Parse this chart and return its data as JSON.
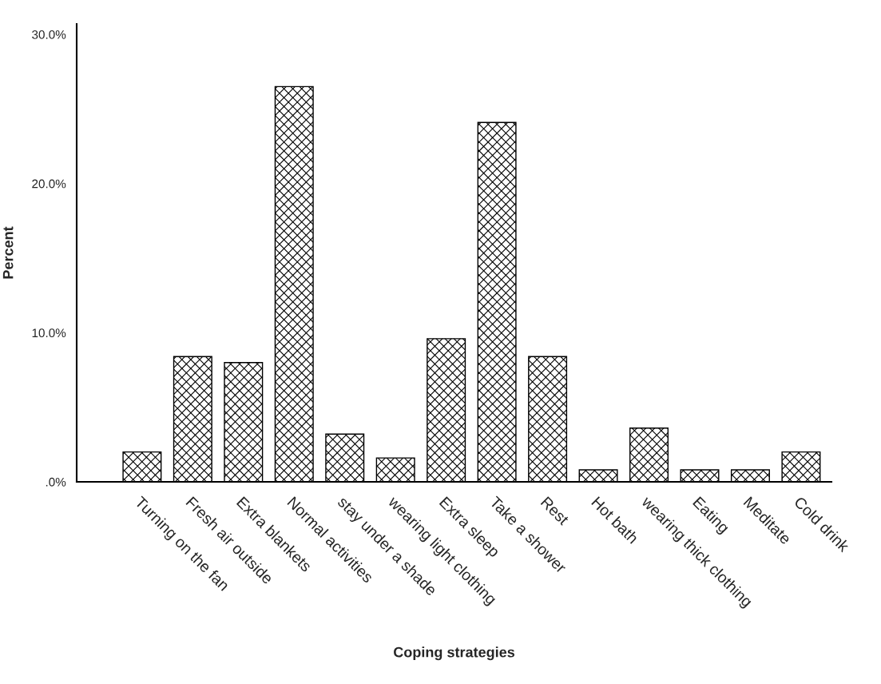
{
  "chart_data": {
    "type": "bar",
    "xlabel": "Coping strategies",
    "ylabel": "Percent",
    "categories": [
      "Turning on the fan",
      "Fresh air outside",
      "Extra blankets",
      "Normal activities",
      "stay under a shade",
      "wearing light clothing",
      "Extra sleep",
      "Take a shower",
      "Rest",
      "Hot bath",
      "wearing thick clothing",
      "Eating",
      "Meditate",
      "Cold drink"
    ],
    "values": [
      2.0,
      8.4,
      8.0,
      26.5,
      3.2,
      1.6,
      9.6,
      24.1,
      8.4,
      0.8,
      3.6,
      0.8,
      0.8,
      2.0
    ],
    "color": "#000000",
    "ylim": [
      0,
      30.7
    ],
    "yticks": [
      {
        "value": 0,
        "label": ".0%"
      },
      {
        "value": 10,
        "label": "10.0%"
      },
      {
        "value": 20,
        "label": "20.0%"
      },
      {
        "value": 30,
        "label": "30.0%"
      }
    ],
    "grid": false
  }
}
